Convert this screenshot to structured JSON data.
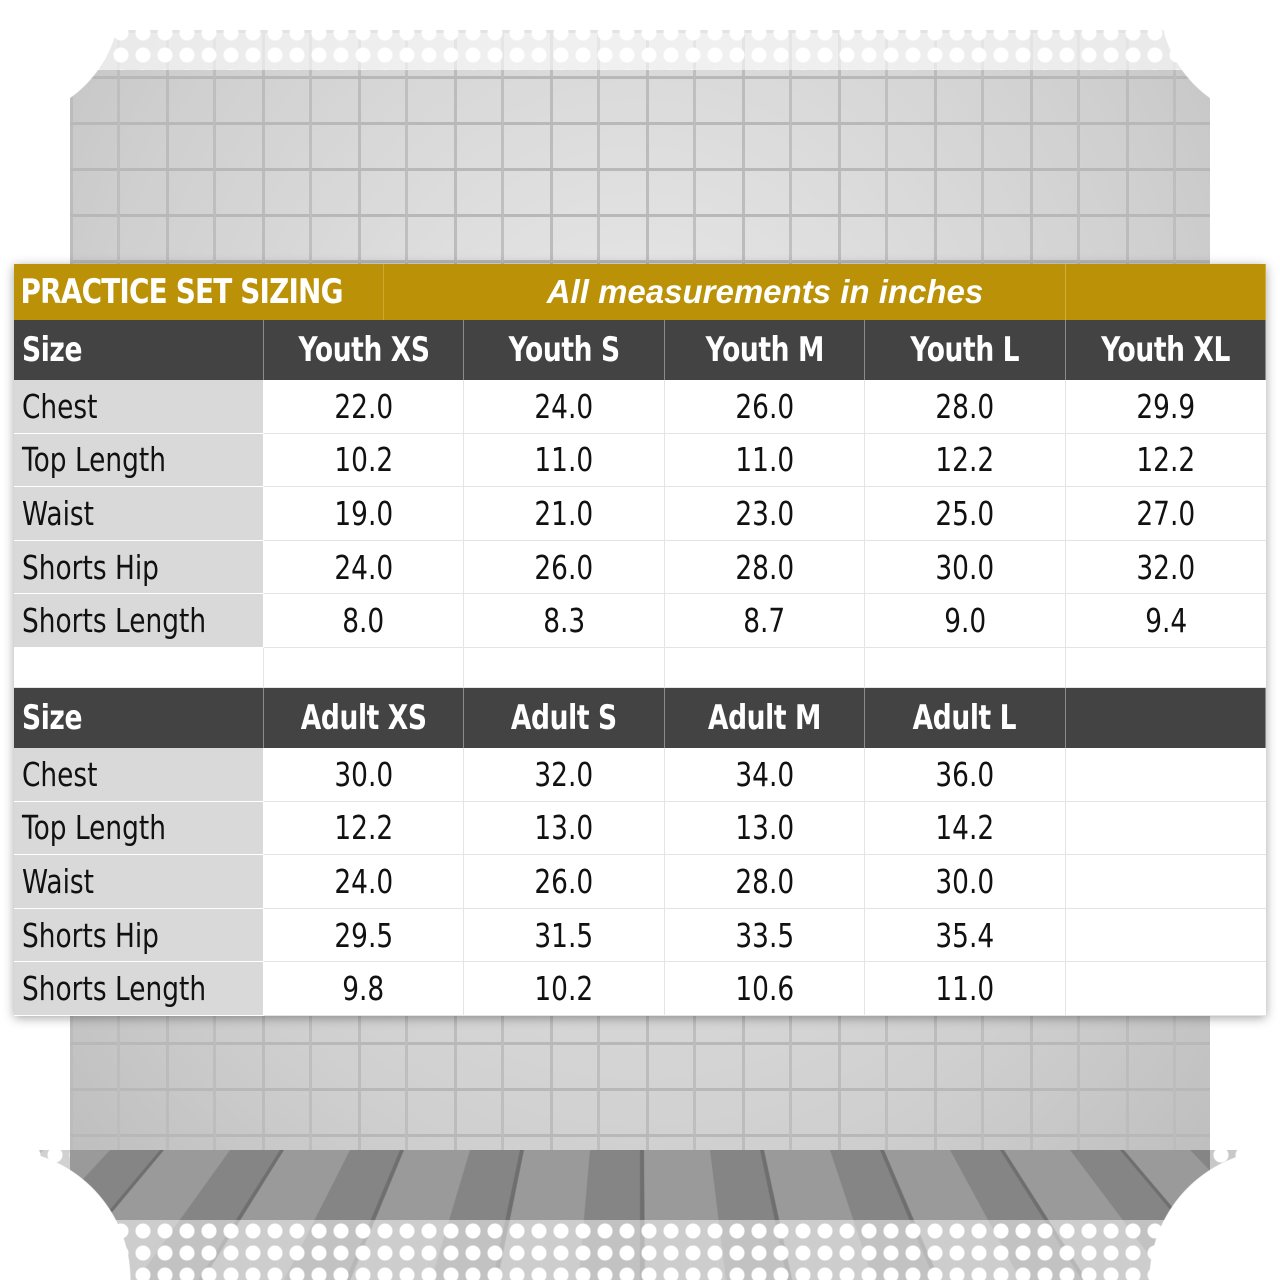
{
  "title": "PRACTICE SET SIZING",
  "subtitle": "All measurements in inches",
  "youth": {
    "headers": [
      "Size",
      "Youth XS",
      "Youth S",
      "Youth M",
      "Youth L",
      "Youth XL"
    ],
    "rows": [
      {
        "label": "Chest",
        "values": [
          "22.0",
          "24.0",
          "26.0",
          "28.0",
          "29.9"
        ]
      },
      {
        "label": "Top Length",
        "values": [
          "10.2",
          "11.0",
          "11.0",
          "12.2",
          "12.2"
        ]
      },
      {
        "label": "Waist",
        "values": [
          "19.0",
          "21.0",
          "23.0",
          "25.0",
          "27.0"
        ]
      },
      {
        "label": "Shorts Hip",
        "values": [
          "24.0",
          "26.0",
          "28.0",
          "30.0",
          "32.0"
        ]
      },
      {
        "label": "Shorts Length",
        "values": [
          "8.0",
          "8.3",
          "8.7",
          "9.0",
          "9.4"
        ]
      }
    ]
  },
  "adult": {
    "headers": [
      "Size",
      "Adult XS",
      "Adult S",
      "Adult M",
      "Adult L",
      ""
    ],
    "rows": [
      {
        "label": "Chest",
        "values": [
          "30.0",
          "32.0",
          "34.0",
          "36.0",
          ""
        ]
      },
      {
        "label": "Top Length",
        "values": [
          "12.2",
          "13.0",
          "13.0",
          "14.2",
          ""
        ]
      },
      {
        "label": "Waist",
        "values": [
          "24.0",
          "26.0",
          "28.0",
          "30.0",
          ""
        ]
      },
      {
        "label": "Shorts Hip",
        "values": [
          "29.5",
          "31.5",
          "33.5",
          "35.4",
          ""
        ]
      },
      {
        "label": "Shorts Length",
        "values": [
          "9.8",
          "10.2",
          "10.6",
          "11.0",
          ""
        ]
      }
    ]
  },
  "colors": {
    "title_bar": "#bb9207",
    "header_bar": "#434343",
    "label_column": "#d9d9d9"
  }
}
